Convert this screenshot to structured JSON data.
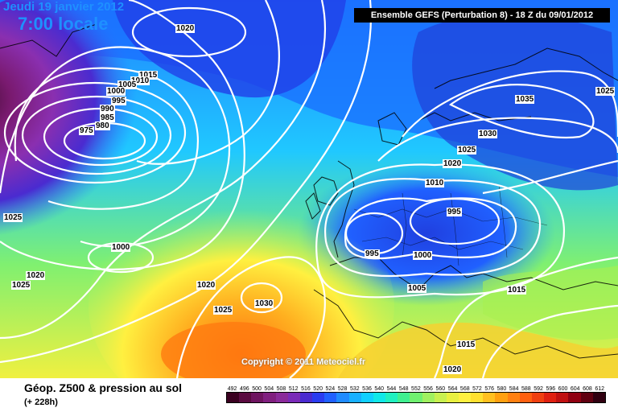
{
  "header": {
    "date_label": "Jeudi 19 janvier 2012",
    "time_label": "7:00 locale",
    "run_label": "Ensemble GEFS (Perturbation 8)  -  18 Z du 09/01/2012"
  },
  "copyright": "Copyright © 2011 Meteociel.fr",
  "footer": {
    "title": "Géop. Z500 & pression au sol",
    "subtitle": "(+ 228h)"
  },
  "isobar_labels": [
    "1020",
    "1015",
    "1010",
    "1005",
    "1000",
    "995",
    "990",
    "985",
    "980",
    "975",
    "1025",
    "1000",
    "1020",
    "1025",
    "1020",
    "1025",
    "1030",
    "1035",
    "1030",
    "1025",
    "1020",
    "1010",
    "995",
    "995",
    "1000",
    "1005",
    "1015",
    "1015",
    "1020",
    "1025"
  ],
  "scale": {
    "labels": [
      "492",
      "496",
      "500",
      "504",
      "508",
      "512",
      "516",
      "520",
      "524",
      "528",
      "532",
      "536",
      "540",
      "544",
      "548",
      "552",
      "556",
      "560",
      "564",
      "568",
      "572",
      "576",
      "580",
      "584",
      "588",
      "592",
      "596",
      "600",
      "604",
      "608",
      "612"
    ],
    "colors": [
      "#3a0020",
      "#5a0a40",
      "#6e1460",
      "#801f7f",
      "#8a2a9a",
      "#7a2ab8",
      "#4a2bd0",
      "#2a3cf0",
      "#2060ff",
      "#1f8bff",
      "#18b0ff",
      "#10d0ff",
      "#10e8e8",
      "#20f0c0",
      "#40f090",
      "#70f070",
      "#a0f060",
      "#c8f050",
      "#e8f040",
      "#fff040",
      "#ffe030",
      "#ffc020",
      "#ffa010",
      "#ff8010",
      "#ff6010",
      "#f04010",
      "#e02010",
      "#c01010",
      "#900010",
      "#600010",
      "#300010"
    ]
  },
  "colors": {
    "title_blue": "#1e90ff",
    "deep_low": "#6e1460",
    "high_orange": "#ff9010"
  }
}
